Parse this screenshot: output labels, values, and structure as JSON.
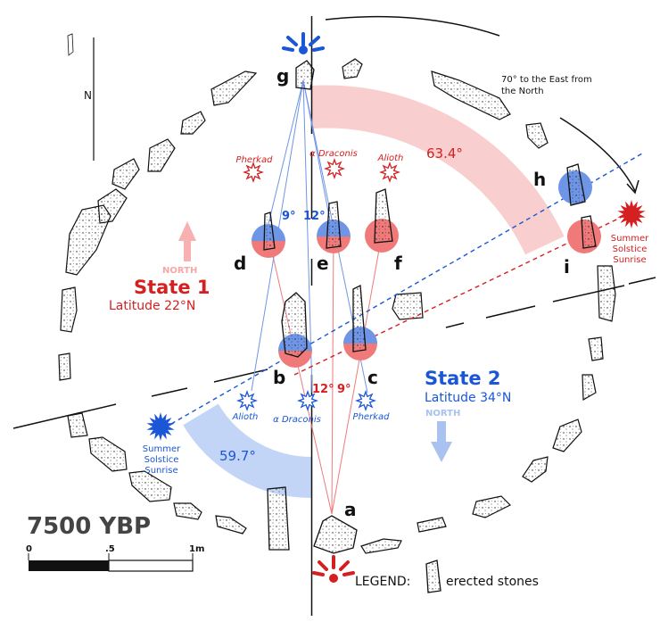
{
  "labels": {
    "north_marker": "N",
    "east_note_1": "70° to the East from",
    "east_note_2": "the North",
    "angle_red": "63.4°",
    "angle_blue": "59.7°",
    "state1_north": "NORTH",
    "state1_title": "State 1",
    "state1_latitude": "Latitude 22°N",
    "state2_title": "State 2",
    "state2_latitude": "Latitude 34°N",
    "state2_north": "NORTH",
    "red_sunrise": [
      "Summer",
      "Solstice",
      "Sunrise"
    ],
    "blue_sunrise": [
      "Summer",
      "Solstice",
      "Sunrise"
    ],
    "angle_9_top": "9°",
    "angle_12_top": "12°",
    "angle_12_bottom": "12°",
    "angle_9_bottom": "9°",
    "era": "7500 YBP",
    "scale": [
      "0",
      ".5",
      "1m"
    ],
    "legend": "LEGEND:",
    "legend_item": "erected stones"
  },
  "stars_red": [
    "Pherkad",
    "α Draconis",
    "Alioth"
  ],
  "stars_blue": [
    "Alioth",
    "α Draconis",
    "Pherkad"
  ],
  "stone_letters": [
    "g",
    "d",
    "e",
    "f",
    "b",
    "c",
    "h",
    "i",
    "a"
  ],
  "colors": {
    "red": "#d42020",
    "blue": "#1a56d6",
    "pale_red": "#f7c6c6",
    "pale_blue": "#bcd0f5",
    "mid_red": "#f07a7a",
    "mid_blue": "#6f95e6",
    "ink": "#111111"
  }
}
